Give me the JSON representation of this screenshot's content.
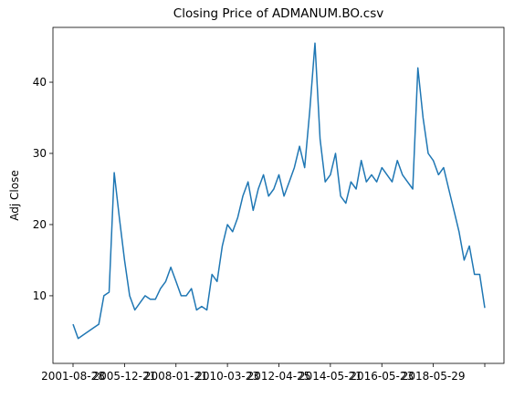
{
  "chart_data": {
    "type": "line",
    "title": "Closing Price of ADMANUM.BO.csv",
    "y_label": "Adj Close",
    "categories": [
      "2001-08-28",
      null,
      null,
      null,
      null,
      null,
      null,
      null,
      null,
      null,
      "2005-12-21",
      null,
      null,
      null,
      null,
      null,
      null,
      null,
      null,
      null,
      "2008-01-21",
      null,
      null,
      null,
      null,
      null,
      null,
      null,
      null,
      null,
      "2010-03-23",
      null,
      null,
      null,
      null,
      null,
      null,
      null,
      null,
      null,
      "2012-04-25",
      null,
      null,
      null,
      null,
      null,
      null,
      null,
      null,
      null,
      "2014-05-21",
      null,
      null,
      null,
      null,
      null,
      null,
      null,
      null,
      null,
      "2016-05-23",
      null,
      null,
      null,
      null,
      null,
      null,
      null,
      null,
      null,
      "2018-05-29",
      null,
      null,
      null,
      null,
      null,
      null,
      null,
      null,
      null,
      null
    ],
    "series": [
      {
        "name": "Adj Close",
        "color": "#1f77b4",
        "values": [
          6,
          4,
          4.5,
          5,
          5.5,
          6,
          10,
          10.5,
          27.3,
          21,
          15,
          10,
          8,
          9,
          10,
          9.5,
          9.5,
          11,
          12,
          14,
          12,
          10,
          10,
          11,
          8,
          8.5,
          8,
          13,
          12,
          17,
          20,
          19,
          21,
          24,
          26,
          22,
          25,
          27,
          24,
          25,
          27,
          24,
          26,
          28,
          31,
          28,
          36,
          45.5,
          32,
          26,
          27,
          30,
          24,
          23,
          26,
          25,
          29,
          26,
          27,
          26,
          28,
          27,
          26,
          29,
          27,
          26,
          25,
          42,
          35,
          30,
          29,
          27,
          28,
          25,
          22,
          19,
          15,
          17,
          13,
          13,
          8.3
        ]
      }
    ],
    "ylim": [
      0.5,
      47.7
    ],
    "yticks": [
      10,
      20,
      30,
      40
    ],
    "grid": false
  }
}
